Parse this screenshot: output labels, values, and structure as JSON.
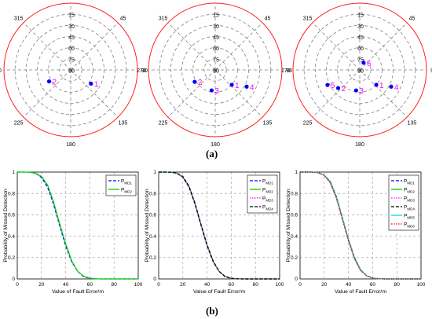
{
  "captions": {
    "a": "(a)",
    "b": "(b)"
  },
  "polar": {
    "radial_ticks": [
      "15",
      "30",
      "45",
      "60",
      "75",
      "90"
    ],
    "angle_ticks": [
      "0",
      "45",
      "90",
      "135",
      "180",
      "225",
      "270",
      "315"
    ],
    "colors": {
      "outer": "#ff2020",
      "grid": "#808080",
      "point": "#0000ff",
      "label": "#ff00ff"
    }
  },
  "line_colors": {
    "P_MD1": "#0000ff",
    "P_MD2": "#00d000",
    "P_MD3": "#ff00ff",
    "P_MD4": "#000000",
    "P_MD5": "#00e0e0",
    "P_MD6": "#ff0000"
  },
  "chart_data": [
    {
      "type": "scatter",
      "subtype": "polar-skyplot",
      "theta_direction": "clockwise",
      "zero_at": "top",
      "radial_range": [
        0,
        90
      ],
      "points": [
        {
          "label": "1",
          "az": 124,
          "el": 57
        },
        {
          "label": "2",
          "az": 242,
          "el": 57
        }
      ]
    },
    {
      "type": "scatter",
      "subtype": "polar-skyplot",
      "theta_direction": "clockwise",
      "zero_at": "top",
      "radial_range": [
        0,
        90
      ],
      "points": [
        {
          "label": "1",
          "az": 132,
          "el": 60
        },
        {
          "label": "2",
          "az": 240,
          "el": 58
        },
        {
          "label": "3",
          "az": 190,
          "el": 62
        },
        {
          "label": "4",
          "az": 118,
          "el": 42
        }
      ]
    },
    {
      "type": "scatter",
      "subtype": "polar-skyplot",
      "theta_direction": "clockwise",
      "zero_at": "top",
      "radial_range": [
        0,
        90
      ],
      "points": [
        {
          "label": "1",
          "az": 132,
          "el": 60
        },
        {
          "label": "2",
          "az": 230,
          "el": 52
        },
        {
          "label": "3",
          "az": 190,
          "el": 62
        },
        {
          "label": "4",
          "az": 118,
          "el": 42
        },
        {
          "label": "5",
          "az": 245,
          "el": 42
        },
        {
          "label": "6",
          "az": 28,
          "el": 79
        }
      ]
    },
    {
      "type": "line",
      "xlabel": "Value of Fault Error/m",
      "ylabel": "Probability of Missed Detection",
      "xlim": [
        0,
        100
      ],
      "ylim": [
        0,
        1
      ],
      "xticks": [
        "0",
        "20",
        "40",
        "60",
        "80",
        "100"
      ],
      "yticks": [
        "0",
        "0.2",
        "0.4",
        "0.6",
        "0.8",
        "1"
      ],
      "legend_position": "top-right",
      "x": [
        0,
        5,
        10,
        15,
        20,
        25,
        30,
        35,
        40,
        45,
        50,
        55,
        60,
        65,
        70,
        80,
        90,
        100
      ],
      "series": [
        {
          "name": "P_MD1",
          "label_main": "P",
          "label_sub": "MD1",
          "style": "dashed",
          "values": [
            1,
            1,
            0.999,
            0.99,
            0.95,
            0.86,
            0.7,
            0.5,
            0.31,
            0.16,
            0.07,
            0.02,
            0.006,
            0.001,
            0,
            0,
            0,
            0
          ]
        },
        {
          "name": "P_MD2",
          "label_main": "P",
          "label_sub": "MD2",
          "style": "solid",
          "values": [
            1,
            1,
            0.999,
            0.99,
            0.96,
            0.88,
            0.72,
            0.52,
            0.33,
            0.17,
            0.07,
            0.025,
            0.007,
            0.001,
            0,
            0,
            0,
            0
          ]
        }
      ]
    },
    {
      "type": "line",
      "xlabel": "Value of Fault Error/m",
      "ylabel": "Probability of Missed Detection",
      "xlim": [
        0,
        100
      ],
      "ylim": [
        0,
        1
      ],
      "xticks": [
        "0",
        "20",
        "40",
        "60",
        "80",
        "100"
      ],
      "yticks": [
        "0",
        "0.2",
        "0.4",
        "0.6",
        "0.8",
        "1"
      ],
      "legend_position": "top-right",
      "x": [
        0,
        5,
        10,
        15,
        20,
        25,
        30,
        35,
        40,
        45,
        50,
        55,
        60,
        65,
        70,
        80,
        90,
        100
      ],
      "series": [
        {
          "name": "P_MD1",
          "label_main": "P",
          "label_sub": "MD1",
          "style": "dashed",
          "values": [
            1,
            1,
            0.999,
            0.99,
            0.95,
            0.86,
            0.7,
            0.5,
            0.31,
            0.16,
            0.07,
            0.02,
            0.006,
            0.001,
            0,
            0,
            0,
            0
          ]
        },
        {
          "name": "P_MD2",
          "label_main": "P",
          "label_sub": "MD2",
          "style": "solid",
          "values": [
            1,
            1,
            0.999,
            0.99,
            0.95,
            0.87,
            0.71,
            0.51,
            0.32,
            0.165,
            0.07,
            0.022,
            0.006,
            0.001,
            0,
            0,
            0,
            0
          ]
        },
        {
          "name": "P_MD3",
          "label_main": "P",
          "label_sub": "MD3",
          "style": "dotted",
          "values": [
            1,
            1,
            0.999,
            0.99,
            0.95,
            0.86,
            0.7,
            0.5,
            0.31,
            0.16,
            0.07,
            0.02,
            0.006,
            0.001,
            0,
            0,
            0,
            0
          ]
        },
        {
          "name": "P_MD4",
          "label_main": "P",
          "label_sub": "MD4",
          "style": "dashed",
          "values": [
            1,
            1,
            0.999,
            0.99,
            0.96,
            0.87,
            0.71,
            0.51,
            0.32,
            0.17,
            0.07,
            0.023,
            0.007,
            0.001,
            0,
            0,
            0,
            0
          ]
        }
      ]
    },
    {
      "type": "line",
      "xlabel": "Value of Fault Error/m",
      "ylabel": "Probability of Missed Detection",
      "xlim": [
        0,
        100
      ],
      "ylim": [
        0,
        1
      ],
      "xticks": [
        "0",
        "20",
        "40",
        "60",
        "80",
        "100"
      ],
      "yticks": [
        "0",
        "0.2",
        "0.4",
        "0.6",
        "0.8",
        "1"
      ],
      "legend_position": "top-right",
      "x": [
        0,
        5,
        10,
        15,
        20,
        25,
        30,
        35,
        40,
        45,
        50,
        55,
        60,
        65,
        70,
        80,
        90,
        100
      ],
      "series": [
        {
          "name": "P_MD1",
          "label_main": "P",
          "label_sub": "MD1",
          "style": "dashed",
          "values": [
            1,
            1,
            1,
            0.995,
            0.97,
            0.9,
            0.76,
            0.56,
            0.36,
            0.19,
            0.08,
            0.03,
            0.008,
            0.002,
            0,
            0,
            0,
            0
          ]
        },
        {
          "name": "P_MD2",
          "label_main": "P",
          "label_sub": "MD2",
          "style": "solid",
          "values": [
            1,
            1,
            1,
            0.995,
            0.97,
            0.91,
            0.77,
            0.57,
            0.37,
            0.2,
            0.085,
            0.03,
            0.008,
            0.002,
            0,
            0,
            0,
            0
          ]
        },
        {
          "name": "P_MD3",
          "label_main": "P",
          "label_sub": "MD3",
          "style": "dotted",
          "values": [
            1,
            1,
            1,
            0.995,
            0.97,
            0.9,
            0.76,
            0.56,
            0.36,
            0.19,
            0.08,
            0.03,
            0.008,
            0.002,
            0,
            0,
            0,
            0
          ]
        },
        {
          "name": "P_MD4",
          "label_main": "P",
          "label_sub": "MD4",
          "style": "dashed",
          "values": [
            1,
            1,
            1,
            0.995,
            0.97,
            0.91,
            0.77,
            0.57,
            0.37,
            0.2,
            0.085,
            0.03,
            0.008,
            0.002,
            0,
            0,
            0,
            0
          ]
        },
        {
          "name": "P_MD5",
          "label_main": "P",
          "label_sub": "MD5",
          "style": "solid",
          "values": [
            1,
            1,
            1,
            0.995,
            0.97,
            0.905,
            0.765,
            0.565,
            0.365,
            0.195,
            0.082,
            0.03,
            0.008,
            0.002,
            0,
            0,
            0,
            0
          ]
        },
        {
          "name": "P_MD6",
          "label_main": "P",
          "label_sub": "MD6",
          "style": "dotted",
          "values": [
            1,
            1,
            1,
            0.995,
            0.97,
            0.9,
            0.76,
            0.56,
            0.36,
            0.19,
            0.08,
            0.03,
            0.008,
            0.002,
            0,
            0,
            0,
            0
          ]
        }
      ]
    }
  ]
}
